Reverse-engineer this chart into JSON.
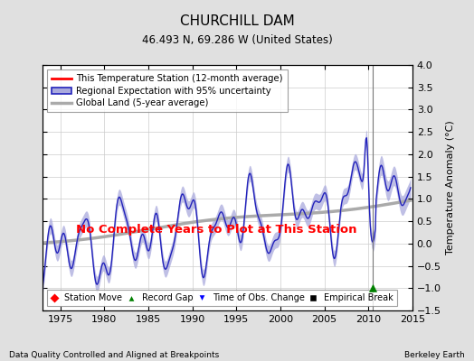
{
  "title": "CHURCHILL DAM",
  "subtitle": "46.493 N, 69.286 W (United States)",
  "ylabel": "Temperature Anomaly (°C)",
  "xlabel_left": "Data Quality Controlled and Aligned at Breakpoints",
  "xlabel_right": "Berkeley Earth",
  "ylim": [
    -1.5,
    4.0
  ],
  "xlim": [
    1973,
    2015
  ],
  "xticks": [
    1975,
    1980,
    1985,
    1990,
    1995,
    2000,
    2005,
    2010,
    2015
  ],
  "yticks": [
    -1.5,
    -1.0,
    -0.5,
    0.0,
    0.5,
    1.0,
    1.5,
    2.0,
    2.5,
    3.0,
    3.5,
    4.0
  ],
  "no_data_text": "No Complete Years to Plot at This Station",
  "vertical_line_x": 2010.5,
  "record_gap_x": 2010.5,
  "record_gap_y": -1.0,
  "bg_color": "#e0e0e0",
  "plot_bg_color": "#ffffff",
  "regional_color": "#2222bb",
  "regional_fill_color": "#aaaadd",
  "global_color": "#aaaaaa",
  "legend_items": [
    {
      "label": "This Temperature Station (12-month average)",
      "color": "red",
      "lw": 2
    },
    {
      "label": "Regional Expectation with 95% uncertainty",
      "color": "#2222bb",
      "lw": 2
    },
    {
      "label": "Global Land (5-year average)",
      "color": "#aaaaaa",
      "lw": 2
    }
  ],
  "bottom_legend": [
    {
      "label": "Station Move",
      "marker": "D",
      "color": "red"
    },
    {
      "label": "Record Gap",
      "marker": "^",
      "color": "green"
    },
    {
      "label": "Time of Obs. Change",
      "marker": "v",
      "color": "blue"
    },
    {
      "label": "Empirical Break",
      "marker": "s",
      "color": "black"
    }
  ]
}
